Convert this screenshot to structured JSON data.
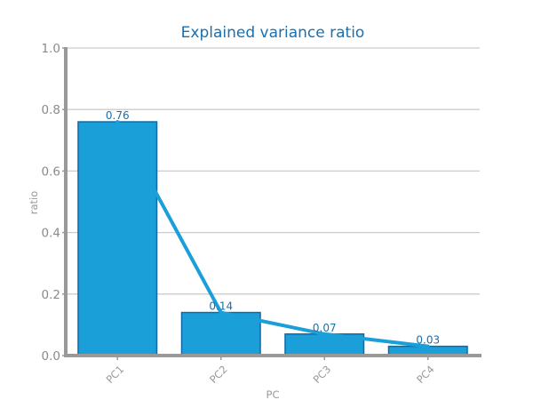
{
  "chart_data": {
    "type": "bar",
    "title": "Explained variance ratio",
    "xlabel": "PC",
    "ylabel": "ratio",
    "categories": [
      "PC1",
      "PC2",
      "PC3",
      "PC4"
    ],
    "values": [
      0.76,
      0.14,
      0.07,
      0.03
    ],
    "data_labels": [
      "0.76",
      "0.14",
      "0.07",
      "0.03"
    ],
    "line_overlay": true,
    "ylim": [
      0,
      1.0
    ],
    "yticks": [
      "0.0",
      "0.2",
      "0.4",
      "0.6",
      "0.8",
      "1.0"
    ],
    "grid": true,
    "legend": "none"
  },
  "colors": {
    "bar_fill": "#1a9fd9",
    "bar_stroke": "#0f6aa6",
    "line": "#1a9fd9",
    "axis": "#999999",
    "grid": "#cccccc",
    "title": "#1a6faf",
    "data_label": "#1a6faf"
  }
}
